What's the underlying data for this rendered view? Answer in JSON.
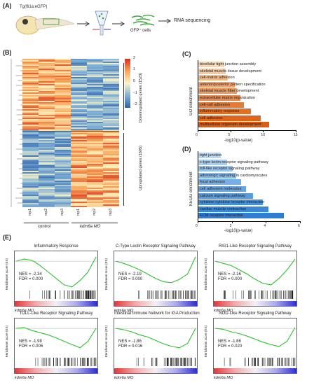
{
  "panelA": {
    "label": "(A)",
    "transgenic": "Tg(fli1a:eGFP)",
    "cells": "GFP⁺ cells",
    "rna": "RNA sequencing"
  },
  "panelB": {
    "label": "(B)",
    "colorbar_ticks": [
      "2",
      "1",
      "0",
      "−1",
      "−2"
    ],
    "downregulated": "Downregulated genes (1523)",
    "upregulated": "Upregulated genes (1695)",
    "columns": [
      "rep1",
      "rep2",
      "rep3",
      "rep1",
      "rep2",
      "rep3"
    ],
    "group_control": "control",
    "group_mo": "kdm6a MO"
  },
  "chart_data": [
    {
      "type": "bar",
      "panel": "(C)",
      "ylabel": "GO enrichment",
      "xlabel": "-log10(p-value)",
      "xticks": [
        "0",
        "5",
        "10",
        "15"
      ],
      "xlim": [
        0,
        15
      ],
      "categories": [
        "bicellular tight junction assembly",
        "skeletal muscle tissue development",
        "cell-matrix adhesion",
        "anterior/posterior pattern specification",
        "skeletal muscle fiber development",
        "extracellular matrix organization",
        "cell-cell adhesion",
        "inflammatory response",
        "cell adhesion",
        "multicellular organism development"
      ],
      "values": [
        4.0,
        4.2,
        4.5,
        5.6,
        5.9,
        6.4,
        7.0,
        8.0,
        9.5,
        10.8
      ],
      "colors": [
        "#f5d7b8",
        "#f3c9a1",
        "#f0bd8a",
        "#eda474",
        "#ea9960",
        "#e8894b",
        "#e57b38",
        "#e36e25",
        "#e06419",
        "#dd5a10"
      ]
    },
    {
      "type": "bar",
      "panel": "(D)",
      "ylabel": "KEGG enrichment",
      "xlabel": "-log10(p-value)",
      "xticks": [
        "0",
        "2",
        "4",
        "6"
      ],
      "xlim": [
        0,
        6
      ],
      "categories": [
        "tight junction",
        "c-type lectin receptor signaling pathway",
        "toll-like receptor signaling pathway",
        "adrenergic signaling in cardiomyocytes",
        "focal adhesion",
        "cell adhesion molecules",
        "calcium signaling pathway",
        "cytokine-cytokine receptor interaction",
        "cardiac muscle contraction",
        "ECM-receptor interaction"
      ],
      "values": [
        1.3,
        1.7,
        2.0,
        2.2,
        2.5,
        2.8,
        3.2,
        3.8,
        4.1,
        5.0
      ],
      "colors": [
        "#b8d6f2",
        "#a8cdef",
        "#98c3ec",
        "#88b9e9",
        "#77aee6",
        "#67a4e2",
        "#579ade",
        "#4690db",
        "#3a87d8",
        "#2f7ed4"
      ]
    }
  ],
  "panelE": {
    "label": "(E)",
    "ylabel": "Enrichment score (ES)",
    "xlabel": "kdm6a MO",
    "plots": [
      {
        "title": "Inflammatory Response",
        "nes": "NES = -2.34",
        "fdr": "FDR = 0.000"
      },
      {
        "title": "C-Type Lectin Receptor Signaling Pathway",
        "nes": "NES = -2.19",
        "fdr": "FDR = 0.000"
      },
      {
        "title": "RIG1-Like Receptor Signaling Pathway",
        "nes": "NES = -2.16",
        "fdr": "FDR = 0.000"
      },
      {
        "title": "TOLL-Like Receptor Signaling Pathway",
        "nes": "NES = -1.98",
        "fdr": "FDR = 0.006"
      },
      {
        "title": "Intestinal Immune Network for IGA Production",
        "nes": "NES = -1.86",
        "fdr": "FDR = 0.016"
      },
      {
        "title": "NOD-Like Receptor Signaling Pathway",
        "nes": "NES = -1.86",
        "fdr": "FDR = 0.020"
      }
    ]
  }
}
